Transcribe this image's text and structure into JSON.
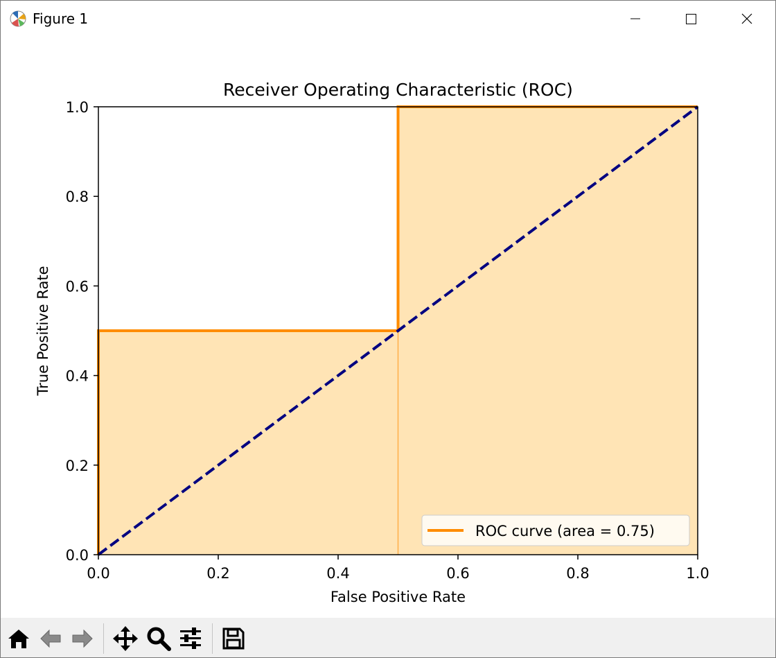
{
  "window": {
    "title": "Figure 1"
  },
  "toolbar": {
    "items": [
      "home-icon",
      "back-icon",
      "forward-icon",
      "pan-icon",
      "zoom-icon",
      "configure-subplots-icon",
      "save-icon"
    ]
  },
  "chart_data": {
    "type": "line",
    "title": "Receiver Operating Characteristic (ROC)",
    "xlabel": "False Positive Rate",
    "ylabel": "True Positive Rate",
    "xlim": [
      0.0,
      1.0
    ],
    "ylim": [
      0.0,
      1.0
    ],
    "xticks": [
      "0.0",
      "0.2",
      "0.4",
      "0.6",
      "0.8",
      "1.0"
    ],
    "yticks": [
      "0.0",
      "0.2",
      "0.4",
      "0.6",
      "0.8",
      "1.0"
    ],
    "grid": false,
    "legend_position": "lower right",
    "series": [
      {
        "name": "ROC curve (area = 0.75)",
        "x": [
          0.0,
          0.0,
          0.5,
          0.5,
          1.0
        ],
        "y": [
          0.0,
          0.5,
          0.5,
          1.0,
          1.0
        ],
        "color": "#ff8c00",
        "fill_color": "#ffe4b5",
        "filled": true
      },
      {
        "x": [
          0.0,
          1.0
        ],
        "y": [
          0.0,
          1.0
        ],
        "color": "#000080",
        "linestyle": "dashed"
      }
    ]
  }
}
